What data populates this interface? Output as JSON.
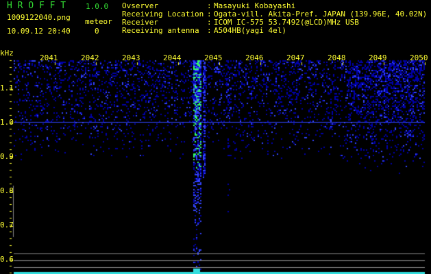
{
  "app": {
    "name": "H R O F F T",
    "version": "1.0.0"
  },
  "file": {
    "name": "1009122040.png",
    "datetime": "10.09.12 20:40"
  },
  "meteor": {
    "label": "meteor",
    "count": "0"
  },
  "info": [
    {
      "label": "Ovserver",
      "sep": ":",
      "value": "Masayuki Kobayashi"
    },
    {
      "label": "Receiving Location",
      "sep": ":",
      "value": "Ogata-vill. Akita-Pref. JAPAN (139.96E, 40.02N)"
    },
    {
      "label": "Receiver",
      "sep": ":",
      "value": "ICOM IC-575 53.7492(@LCD)MHz USB"
    },
    {
      "label": "Receiving antenna",
      "sep": ":",
      "value": "A504HB(yagi 4el)"
    }
  ],
  "spectrogram": {
    "y_unit": "kHz",
    "x_ticks": [
      "2041",
      "2042",
      "2043",
      "2044",
      "2045",
      "2046",
      "2047",
      "2048",
      "2049",
      "2050"
    ],
    "y_ticks": [
      "1.1",
      "1.0",
      "0.9",
      "0.8",
      "0.7",
      "0.6"
    ],
    "colors": {
      "signal_low": "#0000aa",
      "signal_mid": "#3344ff",
      "signal_high": "#33ff66",
      "bottom_bar": "#33dddd",
      "ref_line": "#888888",
      "text": "#ffff33",
      "title": "#33dd33"
    }
  }
}
